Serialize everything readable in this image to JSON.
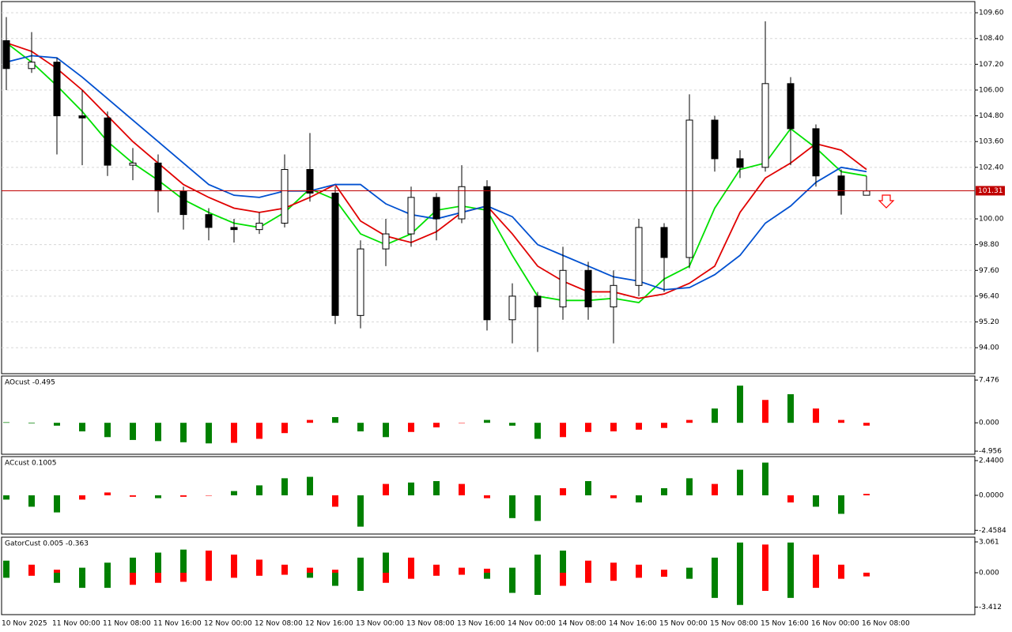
{
  "chart_data": [
    {
      "type": "candlestick",
      "categories": [
        "10 Nov 2025",
        null,
        "11 Nov 00:00",
        null,
        "11 Nov 08:00",
        null,
        "11 Nov 16:00",
        null,
        "12 Nov 00:00",
        null,
        "12 Nov 08:00",
        null,
        "12 Nov 16:00",
        null,
        "13 Nov 00:00",
        null,
        "13 Nov 08:00",
        null,
        "13 Nov 16:00",
        null,
        "14 Nov 00:00",
        null,
        "14 Nov 08:00",
        null,
        "14 Nov 16:00",
        null,
        "15 Nov 00:00",
        null,
        "15 Nov 08:00",
        null,
        "15 Nov 16:00",
        null,
        "16 Nov 00:00",
        null,
        "16 Nov 08:00"
      ],
      "open": [
        108.3,
        107.0,
        107.3,
        104.8,
        104.7,
        102.5,
        102.6,
        101.3,
        100.2,
        99.6,
        99.5,
        99.8,
        102.3,
        101.2,
        95.5,
        98.6,
        99.3,
        101.0,
        100.0,
        101.5,
        95.3,
        96.4,
        95.9,
        97.6,
        95.9,
        96.9,
        99.6,
        98.2,
        104.6,
        102.8,
        102.4,
        106.3,
        104.2,
        102.0,
        101.1
      ],
      "high": [
        109.4,
        108.7,
        107.5,
        106.0,
        105.0,
        103.3,
        103.0,
        101.5,
        100.5,
        100.0,
        100.3,
        103.0,
        104.0,
        101.5,
        99.0,
        100.0,
        101.5,
        101.2,
        102.5,
        101.8,
        97.0,
        96.6,
        98.7,
        98.0,
        97.6,
        100.0,
        99.8,
        105.8,
        104.8,
        103.2,
        109.2,
        106.6,
        104.4,
        102.3,
        102.0
      ],
      "low": [
        106.0,
        106.8,
        103.0,
        102.5,
        102.0,
        101.8,
        100.3,
        99.5,
        99.0,
        98.9,
        99.3,
        99.6,
        100.8,
        95.1,
        94.9,
        97.8,
        98.7,
        99.0,
        99.8,
        94.8,
        94.2,
        93.8,
        95.3,
        95.3,
        94.2,
        96.4,
        96.6,
        97.7,
        102.2,
        101.9,
        102.2,
        102.5,
        101.5,
        100.2,
        101.1
      ],
      "close": [
        107.0,
        107.3,
        104.8,
        104.7,
        102.5,
        102.6,
        101.3,
        100.2,
        99.6,
        99.5,
        99.8,
        102.3,
        101.2,
        95.5,
        98.6,
        99.3,
        101.0,
        100.0,
        101.5,
        95.3,
        96.4,
        95.9,
        97.6,
        95.9,
        96.9,
        99.6,
        98.2,
        104.6,
        102.8,
        102.4,
        106.3,
        104.2,
        102.0,
        101.1,
        101.3
      ],
      "up_color": "#ffffff",
      "down_color": "#000000",
      "series": [
        {
          "color": "#00e000",
          "values": [
            108.2,
            107.3,
            106.2,
            105.0,
            103.6,
            102.6,
            101.8,
            100.9,
            100.3,
            99.8,
            99.6,
            100.3,
            101.4,
            100.9,
            99.3,
            98.8,
            99.3,
            100.4,
            100.6,
            100.4,
            98.3,
            96.4,
            96.2,
            96.2,
            96.3,
            96.1,
            97.2,
            97.8,
            100.5,
            102.3,
            102.6,
            104.2,
            103.3,
            102.2,
            102.0
          ]
        },
        {
          "color": "#e00000",
          "values": [
            108.2,
            107.8,
            107.0,
            106.0,
            104.8,
            103.6,
            102.6,
            101.6,
            101.0,
            100.5,
            100.3,
            100.5,
            101.0,
            101.6,
            99.9,
            99.2,
            98.9,
            99.4,
            100.3,
            100.6,
            99.3,
            97.8,
            97.1,
            96.6,
            96.6,
            96.3,
            96.5,
            97.0,
            97.8,
            100.3,
            101.9,
            102.6,
            103.5,
            103.2,
            102.3
          ]
        },
        {
          "color": "#0050d0",
          "values": [
            107.3,
            107.6,
            107.5,
            106.6,
            105.6,
            104.6,
            103.6,
            102.6,
            101.6,
            101.1,
            101.0,
            101.3,
            101.3,
            101.6,
            101.6,
            100.7,
            100.2,
            100.0,
            100.3,
            100.6,
            100.1,
            98.8,
            98.3,
            97.8,
            97.3,
            97.1,
            96.7,
            96.8,
            97.4,
            98.3,
            99.8,
            100.6,
            101.7,
            102.4,
            102.2
          ]
        }
      ],
      "current_price": 101.31,
      "price_line_color": "#c00000",
      "ylim": [
        92.79,
        110.12
      ],
      "yticks": [
        {
          "value": 109.6,
          "label": "109.60"
        },
        {
          "value": 108.4,
          "label": "108.40"
        },
        {
          "value": 107.2,
          "label": "107.20"
        },
        {
          "value": 106,
          "label": "106.00"
        },
        {
          "value": 104.8,
          "label": "104.80"
        },
        {
          "value": 103.6,
          "label": "103.60"
        },
        {
          "value": 102.4,
          "label": "102.40"
        },
        {
          "value": 100,
          "label": "100.00"
        },
        {
          "value": 98.8,
          "label": "98.80"
        },
        {
          "value": 97.6,
          "label": "97.60"
        },
        {
          "value": 96.4,
          "label": "96.40"
        },
        {
          "value": 95.2,
          "label": "95.20"
        },
        {
          "value": 94,
          "label": "94.00"
        }
      ],
      "grid": true
    },
    {
      "type": "bar",
      "title": "AOcust -0.495",
      "up_color": "#008000",
      "down_color": "#ff0000",
      "values": [
        0.1,
        -0.1,
        -0.5,
        -1.5,
        -2.5,
        -3.0,
        -3.2,
        -3.4,
        -3.6,
        -3.5,
        -2.8,
        -1.8,
        0.5,
        1.0,
        -1.5,
        -2.5,
        -1.6,
        -0.8,
        0.0,
        0.5,
        -0.5,
        -2.8,
        -2.5,
        -1.6,
        -1.5,
        -1.2,
        -0.9,
        0.5,
        2.5,
        6.5,
        4.0,
        5.0,
        2.5,
        0.5,
        -0.495
      ],
      "ylim": [
        -5.5,
        8.18
      ],
      "yticks": [
        7.476,
        {
          "value": 0,
          "label": "0.000"
        },
        -4.956
      ]
    },
    {
      "type": "bar",
      "title": "ACcust 0.1005",
      "up_color": "#008000",
      "down_color": "#ff0000",
      "values": [
        -0.3,
        -0.8,
        -1.2,
        -0.3,
        0.2,
        -0.1,
        -0.2,
        -0.1,
        0.0,
        0.3,
        0.7,
        1.2,
        1.3,
        -0.8,
        -2.2,
        0.8,
        0.9,
        1.0,
        0.8,
        -0.2,
        -1.6,
        -1.8,
        0.5,
        1.0,
        -0.2,
        -0.5,
        0.5,
        1.2,
        0.8,
        1.8,
        2.3,
        -0.5,
        -0.8,
        -1.3,
        0.1005
      ],
      "ylim": [
        -2.72,
        2.72
      ],
      "yticks": [
        {
          "value": 2.44,
          "label": "2.4400"
        },
        {
          "value": 0,
          "label": "0.0000"
        },
        -2.4584
      ]
    },
    {
      "type": "bar",
      "title": "GatorCust 0.005 -0.363",
      "up_color": "#008000",
      "down_color": "#ff0000",
      "series": [
        {
          "values": [
            1.2,
            0.8,
            0.3,
            0.5,
            1.0,
            1.5,
            2.0,
            2.3,
            2.2,
            1.8,
            1.3,
            0.8,
            0.5,
            0.3,
            1.5,
            2.0,
            1.5,
            0.8,
            0.5,
            0.4,
            0.5,
            1.8,
            2.2,
            1.2,
            1.0,
            0.8,
            0.3,
            0.5,
            1.5,
            3.0,
            2.8,
            3.0,
            1.8,
            0.8,
            0.005
          ]
        },
        {
          "values": [
            -0.5,
            -0.3,
            -1.0,
            -1.5,
            -1.5,
            -1.2,
            -1.0,
            -0.9,
            -0.8,
            -0.5,
            -0.3,
            -0.2,
            -0.5,
            -1.3,
            -1.8,
            -1.0,
            -0.6,
            -0.3,
            -0.2,
            -0.6,
            -2.0,
            -2.2,
            -1.3,
            -1.0,
            -0.8,
            -0.5,
            -0.4,
            -0.6,
            -2.5,
            -3.2,
            -1.8,
            -2.5,
            -1.5,
            -0.6,
            -0.363
          ]
        }
      ],
      "ylim": [
        -4.16,
        3.53
      ],
      "yticks": [
        3.061,
        {
          "value": 0,
          "label": "0.000"
        },
        -3.412
      ]
    }
  ]
}
